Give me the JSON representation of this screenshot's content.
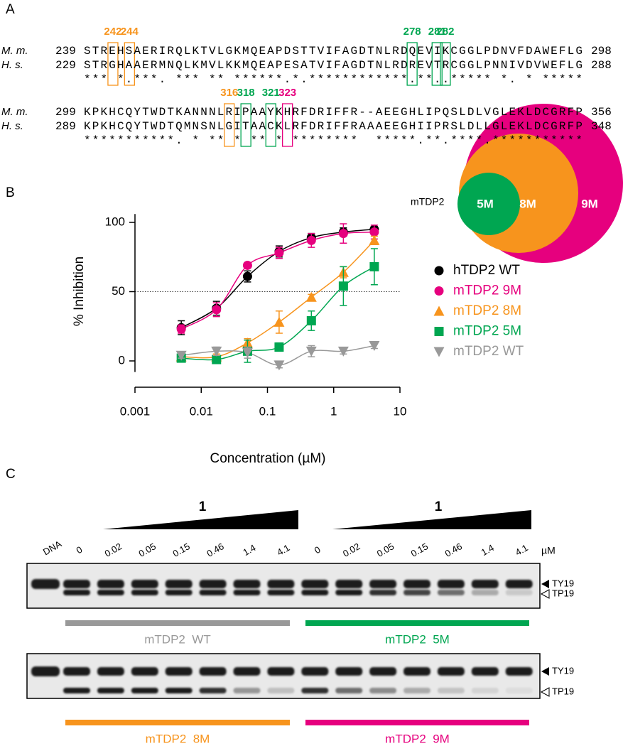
{
  "panels": {
    "a": "A",
    "b": "B",
    "c": "C"
  },
  "alignment": {
    "blocks": [
      {
        "rows": [
          {
            "species": "M. m.",
            "start": "239",
            "sequence": "STREHSAERIRQLKTVLGKMQEAPDSTTVIFAGDTNLRDQEVIKCGGLPDNVFDAWEFLG",
            "end": "298"
          },
          {
            "species": "H. s.",
            "start": "229",
            "sequence": "STRGHAAERMNQLKMVLKKMQEAPESATVIFAGDTNLRDREVTRCGGLPNNIVDVWEFLG",
            "end": "288"
          }
        ],
        "consensus": "*** *.***. *** ** ******.*.************.**..***** *. * *****",
        "highlights": [
          {
            "label": "242",
            "color": "#f7941d"
          },
          {
            "label": "244",
            "color": "#f7941d"
          },
          {
            "label": "278",
            "color": "#00a651"
          },
          {
            "label": "281",
            "color": "#00a651"
          },
          {
            "label": "282",
            "color": "#00a651"
          }
        ]
      },
      {
        "rows": [
          {
            "species": "M. m.",
            "start": "299",
            "sequence": "KPKHCQYTWDTKANNNLRIPAAYKHRFDRIFFR--AEEGHLIPQSLDLVGLEKLDCGRFP",
            "end": "356"
          },
          {
            "species": "H. s.",
            "start": "289",
            "sequence": "KPKHCQYTWDTQMNSNLGITAACKLRFDRIFFRAAAEEGHIIPRSLDLLGLEKLDCGRFP",
            "end": "348"
          }
        ],
        "consensus": "***********. * ** * ** * ********  *****.**.****.***********",
        "highlights": [
          {
            "label": "316",
            "color": "#f7941d"
          },
          {
            "label": "318",
            "color": "#00a651"
          },
          {
            "label": "321",
            "color": "#00a651"
          },
          {
            "label": "323",
            "color": "#e6007e"
          }
        ]
      }
    ]
  },
  "chart_data": {
    "type": "line",
    "ylabel": "% Inhibition",
    "xlabel": "Concentration (µM)",
    "x": [
      0.005,
      0.017,
      0.05,
      0.15,
      0.46,
      1.4,
      4.1
    ],
    "xlim": [
      0.001,
      10
    ],
    "xticks": [
      0.001,
      0.01,
      0.1,
      1,
      10
    ],
    "log_x": true,
    "ylim": [
      -8,
      106
    ],
    "yticks": [
      0,
      50,
      100
    ],
    "hline": 50,
    "series": [
      {
        "name": "hTDP2 WT",
        "color": "#000000",
        "marker": "circle",
        "values": [
          24,
          38,
          61,
          79,
          89,
          93,
          95
        ],
        "errors": [
          5,
          5,
          4,
          4,
          3,
          3,
          2
        ]
      },
      {
        "name": "mTDP2 9M",
        "color": "#e6007e",
        "marker": "circle",
        "values": [
          23,
          37,
          69,
          78,
          87,
          92,
          93
        ],
        "errors": [
          3,
          5,
          2,
          4,
          5,
          7,
          5
        ]
      },
      {
        "name": "mTDP2 8M",
        "color": "#f7941d",
        "marker": "triangle-up",
        "values": [
          3,
          3,
          13,
          28,
          46,
          64,
          87
        ],
        "errors": [
          3,
          2,
          3,
          8,
          2,
          4,
          3
        ]
      },
      {
        "name": "mTDP2 5M",
        "color": "#00a651",
        "marker": "square",
        "values": [
          2,
          1,
          7,
          10,
          29,
          54,
          68
        ],
        "errors": [
          2,
          2,
          8,
          3,
          7,
          14,
          13
        ]
      },
      {
        "name": "mTDP2 WT",
        "color": "#999999",
        "marker": "triangle-down",
        "values": [
          4,
          7,
          6,
          -3,
          7,
          7,
          11
        ],
        "errors": [
          2,
          3,
          4,
          2,
          4,
          2,
          2
        ]
      }
    ]
  },
  "inset": {
    "title": "mTDP2",
    "labels": [
      "5M",
      "8M",
      "9M"
    ]
  },
  "gel": {
    "compound": "1",
    "dna": "DNA",
    "concentrations": [
      "0",
      "0.02",
      "0.05",
      "0.15",
      "0.46",
      "1.4",
      "4.1"
    ],
    "unit": "µM",
    "bands": [
      "TY19",
      "TP19"
    ],
    "groups": [
      {
        "label": "mTDP2  WT",
        "color": "#999999"
      },
      {
        "label": "mTDP2  5M",
        "color": "#00a651"
      },
      {
        "label": "mTDP2  8M",
        "color": "#f7941d"
      },
      {
        "label": "mTDP2  9M",
        "color": "#e6007e"
      }
    ]
  }
}
